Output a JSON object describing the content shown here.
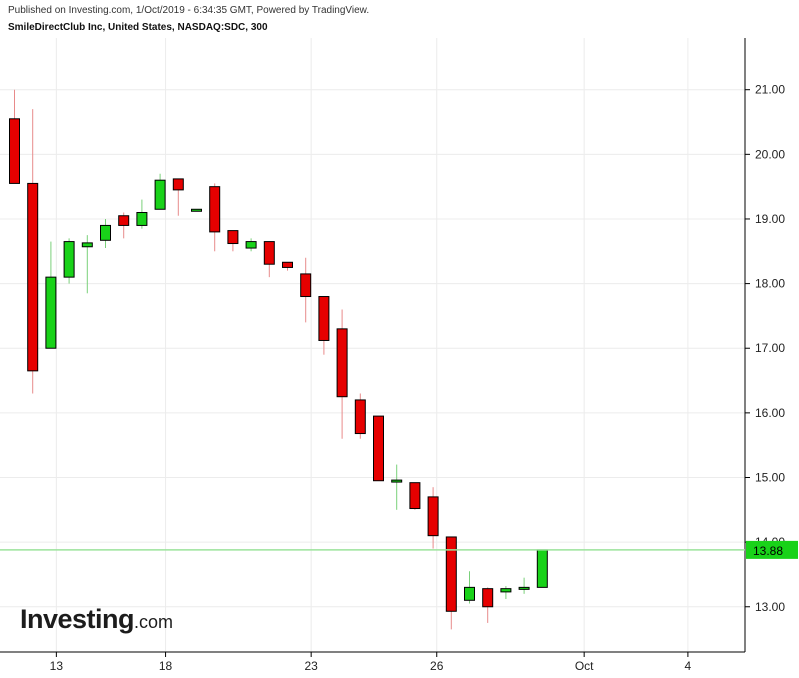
{
  "header": {
    "published": "Published on Investing.com, 1/Oct/2019 - 6:34:35 GMT, Powered by TradingView.",
    "ticker": "SmileDirectClub Inc, United States, NASDAQ:SDC, 300"
  },
  "logo": {
    "main": "Investing",
    "suffix": ".com"
  },
  "colors": {
    "up": "#19d219",
    "down": "#e60000",
    "grid": "#ececec",
    "last_line": "#9be39b",
    "last_badge": "#19d219"
  },
  "chart_data": {
    "type": "candlestick",
    "title": "",
    "xlabel": "",
    "ylabel": "",
    "ylim": [
      12.3,
      21.8
    ],
    "y_ticks": [
      13,
      14,
      15,
      16,
      17,
      18,
      19,
      20,
      21
    ],
    "y_tick_labels": [
      "13.00",
      "14.00",
      "15.00",
      "16.00",
      "17.00",
      "18.00",
      "19.00",
      "20.00",
      "21.00"
    ],
    "x_tick_labels": [
      {
        "label": "13",
        "slot": 2.3
      },
      {
        "label": "18",
        "slot": 8.3
      },
      {
        "label": "23",
        "slot": 16.3
      },
      {
        "label": "26",
        "slot": 23.2
      },
      {
        "label": "Oct",
        "slot": 31.3
      },
      {
        "label": "4",
        "slot": 37.0
      }
    ],
    "x_slots": [
      0,
      40
    ],
    "last_price": 13.88,
    "last_price_label": "13.88",
    "grid": true,
    "candles": [
      {
        "slot": 0,
        "o": 20.55,
        "h": 21.0,
        "l": 19.55,
        "c": 19.55
      },
      {
        "slot": 1,
        "o": 19.55,
        "h": 20.7,
        "l": 16.3,
        "c": 16.65
      },
      {
        "slot": 2,
        "o": 17.0,
        "h": 18.65,
        "l": 17.0,
        "c": 18.1
      },
      {
        "slot": 3,
        "o": 18.1,
        "h": 18.7,
        "l": 18.0,
        "c": 18.65
      },
      {
        "slot": 4,
        "o": 18.57,
        "h": 18.75,
        "l": 17.85,
        "c": 18.63
      },
      {
        "slot": 5,
        "o": 18.67,
        "h": 19.0,
        "l": 18.55,
        "c": 18.9
      },
      {
        "slot": 6,
        "o": 19.05,
        "h": 19.1,
        "l": 18.7,
        "c": 18.9
      },
      {
        "slot": 7,
        "o": 18.9,
        "h": 19.3,
        "l": 18.85,
        "c": 19.1
      },
      {
        "slot": 8,
        "o": 19.15,
        "h": 19.7,
        "l": 19.15,
        "c": 19.6
      },
      {
        "slot": 9,
        "o": 19.62,
        "h": 19.62,
        "l": 19.05,
        "c": 19.45
      },
      {
        "slot": 10,
        "o": 19.15,
        "h": 19.15,
        "l": 19.15,
        "c": 19.15
      },
      {
        "slot": 11,
        "o": 19.5,
        "h": 19.55,
        "l": 18.5,
        "c": 18.8
      },
      {
        "slot": 12,
        "o": 18.82,
        "h": 18.82,
        "l": 18.5,
        "c": 18.62
      },
      {
        "slot": 13,
        "o": 18.55,
        "h": 18.7,
        "l": 18.5,
        "c": 18.65
      },
      {
        "slot": 14,
        "o": 18.65,
        "h": 18.65,
        "l": 18.1,
        "c": 18.3
      },
      {
        "slot": 15,
        "o": 18.33,
        "h": 18.33,
        "l": 18.2,
        "c": 18.25
      },
      {
        "slot": 16,
        "o": 18.15,
        "h": 18.4,
        "l": 17.4,
        "c": 17.8
      },
      {
        "slot": 17,
        "o": 17.8,
        "h": 17.8,
        "l": 16.9,
        "c": 17.12
      },
      {
        "slot": 18,
        "o": 17.3,
        "h": 17.6,
        "l": 15.6,
        "c": 16.25
      },
      {
        "slot": 19,
        "o": 16.2,
        "h": 16.3,
        "l": 15.6,
        "c": 15.68
      },
      {
        "slot": 20,
        "o": 15.95,
        "h": 15.95,
        "l": 14.95,
        "c": 14.95
      },
      {
        "slot": 21,
        "o": 14.93,
        "h": 15.2,
        "l": 14.5,
        "c": 14.96
      },
      {
        "slot": 22,
        "o": 14.92,
        "h": 14.92,
        "l": 14.5,
        "c": 14.52
      },
      {
        "slot": 23,
        "o": 14.7,
        "h": 14.85,
        "l": 13.9,
        "c": 14.1
      },
      {
        "slot": 24,
        "o": 14.08,
        "h": 14.08,
        "l": 12.65,
        "c": 12.93
      },
      {
        "slot": 25,
        "o": 13.1,
        "h": 13.55,
        "l": 13.05,
        "c": 13.3
      },
      {
        "slot": 26,
        "o": 13.28,
        "h": 13.3,
        "l": 12.75,
        "c": 13.0
      },
      {
        "slot": 27,
        "o": 13.23,
        "h": 13.32,
        "l": 13.12,
        "c": 13.28
      },
      {
        "slot": 28,
        "o": 13.28,
        "h": 13.45,
        "l": 13.2,
        "c": 13.3
      },
      {
        "slot": 29,
        "o": 13.3,
        "h": 13.88,
        "l": 13.3,
        "c": 13.88
      }
    ]
  }
}
